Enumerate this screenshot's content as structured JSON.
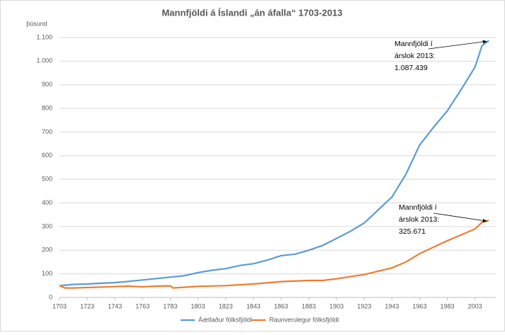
{
  "chart_data": {
    "type": "line",
    "title": "Mannfjöldi á Íslandi „án áfalla“ 1703-2013",
    "y_axis_label": "þúsund",
    "xlim": [
      1703,
      2018
    ],
    "xticks": [
      1703,
      1723,
      1743,
      1763,
      1783,
      1803,
      1823,
      1843,
      1863,
      1883,
      1903,
      1923,
      1943,
      1963,
      1983,
      2003
    ],
    "ylim": [
      0,
      1100
    ],
    "yticks": [
      0,
      100,
      200,
      300,
      400,
      500,
      600,
      700,
      800,
      900,
      {
        "value": 1000,
        "label": "1.000"
      },
      {
        "value": 1100,
        "label": "1.100"
      }
    ],
    "grid": true,
    "legend": "bottom",
    "series": [
      {
        "name": "Áætlaður fólksfjöldi",
        "color": "#5b9bd5",
        "x": [
          1703,
          1713,
          1723,
          1733,
          1743,
          1753,
          1763,
          1773,
          1783,
          1793,
          1803,
          1813,
          1823,
          1833,
          1843,
          1853,
          1863,
          1873,
          1883,
          1893,
          1903,
          1913,
          1923,
          1933,
          1943,
          1953,
          1963,
          1973,
          1983,
          1993,
          2003,
          2008,
          2013
        ],
        "values": [
          50,
          55,
          57,
          60,
          63,
          68,
          74,
          80,
          86,
          92,
          105,
          115,
          122,
          135,
          143,
          158,
          177,
          183,
          200,
          220,
          250,
          280,
          315,
          370,
          425,
          520,
          645,
          720,
          790,
          880,
          975,
          1065,
          1087
        ]
      },
      {
        "name": "Raunverulegur fólksfjöldi",
        "color": "#ed7d31",
        "x": [
          1703,
          1707,
          1713,
          1733,
          1753,
          1763,
          1773,
          1783,
          1785,
          1803,
          1823,
          1843,
          1863,
          1883,
          1893,
          1903,
          1923,
          1943,
          1953,
          1963,
          1973,
          1983,
          1993,
          2003,
          2008,
          2013
        ],
        "values": [
          50,
          40,
          40,
          44,
          48,
          45,
          48,
          49,
          40,
          47,
          50,
          57,
          67,
          72,
          72,
          79,
          97,
          125,
          150,
          185,
          213,
          240,
          265,
          290,
          318,
          326
        ]
      }
    ],
    "annotations": [
      {
        "lines": [
          "Mannfjöldi í",
          "árslok 2013:",
          "1.087.439"
        ]
      },
      {
        "lines": [
          "Mannfjöldi í",
          "árslok 2013:",
          "325.671"
        ]
      }
    ]
  }
}
